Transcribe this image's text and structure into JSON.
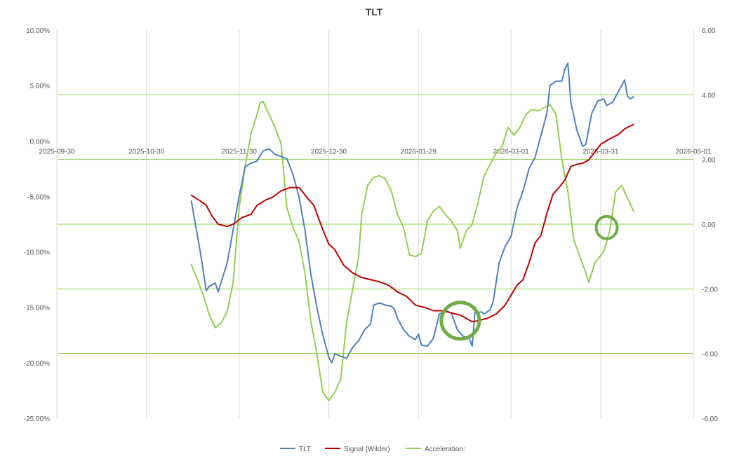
{
  "chart_data": {
    "type": "line",
    "title": "TLT",
    "x_tick_labels": [
      "2025-09-30",
      "2025-10-30",
      "2025-11-30",
      "2025-12-30",
      "2026-01-29",
      "2026-03-01",
      "2026-03-31",
      "2026-05-01"
    ],
    "x_range": [
      "2025-09-30",
      "2026-05-01"
    ],
    "y_left": {
      "tick_labels": [
        "10.00%",
        "5.00%",
        "0.00%",
        "-5.00%",
        "-10.00%",
        "-15.00%",
        "-20.00%",
        "-25.00%"
      ],
      "range": [
        -25,
        10
      ],
      "unit": "%"
    },
    "y_right": {
      "tick_labels": [
        "6.00",
        "4.00",
        "2.00",
        "0.00",
        "-2.00",
        "-4.00",
        "-6.00"
      ],
      "range": [
        -6,
        6
      ]
    },
    "gridlines": {
      "vertical": true,
      "horizontal_right_axis": true
    },
    "legend_position": "bottom",
    "series": [
      {
        "name": "TLT",
        "axis": "left",
        "color": "#4F81BD",
        "points": [
          [
            "2025-11-14",
            -5.4
          ],
          [
            "2025-11-17",
            -10.0
          ],
          [
            "2025-11-19",
            -13.5
          ],
          [
            "2025-11-20",
            -13.1
          ],
          [
            "2025-11-22",
            -12.8
          ],
          [
            "2025-11-23",
            -13.6
          ],
          [
            "2025-11-24",
            -12.7
          ],
          [
            "2025-11-26",
            -11.0
          ],
          [
            "2025-11-28",
            -8.0
          ],
          [
            "2025-11-30",
            -5.0
          ],
          [
            "2025-12-02",
            -2.3
          ],
          [
            "2025-12-04",
            -2.0
          ],
          [
            "2025-12-06",
            -1.8
          ],
          [
            "2025-12-08",
            -0.9
          ],
          [
            "2025-12-10",
            -0.7
          ],
          [
            "2025-12-12",
            -1.2
          ],
          [
            "2025-12-14",
            -1.4
          ],
          [
            "2025-12-16",
            -1.6
          ],
          [
            "2025-12-18",
            -3.0
          ],
          [
            "2025-12-20",
            -5.0
          ],
          [
            "2025-12-22",
            -8.0
          ],
          [
            "2025-12-24",
            -12.0
          ],
          [
            "2025-12-26",
            -15.0
          ],
          [
            "2025-12-28",
            -17.5
          ],
          [
            "2025-12-30",
            -19.5
          ],
          [
            "2025-12-31",
            -20.0
          ],
          [
            "2026-01-01",
            -19.2
          ],
          [
            "2026-01-03",
            -19.4
          ],
          [
            "2026-01-05",
            -19.6
          ],
          [
            "2026-01-07",
            -18.6
          ],
          [
            "2026-01-09",
            -18.0
          ],
          [
            "2026-01-11",
            -17.0
          ],
          [
            "2026-01-13",
            -16.5
          ],
          [
            "2026-01-14",
            -14.8
          ],
          [
            "2026-01-16",
            -14.6
          ],
          [
            "2026-01-18",
            -14.8
          ],
          [
            "2026-01-20",
            -14.9
          ],
          [
            "2026-01-21",
            -15.2
          ],
          [
            "2026-01-22",
            -16.0
          ],
          [
            "2026-01-24",
            -17.0
          ],
          [
            "2026-01-26",
            -17.6
          ],
          [
            "2026-01-28",
            -17.9
          ],
          [
            "2026-01-29",
            -17.4
          ],
          [
            "2026-01-30",
            -18.4
          ],
          [
            "2026-02-01",
            -18.5
          ],
          [
            "2026-02-03",
            -17.8
          ],
          [
            "2026-02-05",
            -15.6
          ],
          [
            "2026-02-07",
            -15.3
          ],
          [
            "2026-02-09",
            -15.5
          ],
          [
            "2026-02-11",
            -17.0
          ],
          [
            "2026-02-13",
            -17.6
          ],
          [
            "2026-02-15",
            -17.8
          ],
          [
            "2026-02-16",
            -18.5
          ],
          [
            "2026-02-17",
            -15.0
          ],
          [
            "2026-02-18",
            -15.5
          ],
          [
            "2026-02-19",
            -15.4
          ],
          [
            "2026-02-20",
            -15.6
          ],
          [
            "2026-02-22",
            -15.2
          ],
          [
            "2026-02-23",
            -14.5
          ],
          [
            "2026-02-25",
            -11.0
          ],
          [
            "2026-02-27",
            -9.5
          ],
          [
            "2026-03-01",
            -8.6
          ],
          [
            "2026-03-03",
            -6.0
          ],
          [
            "2026-03-05",
            -4.5
          ],
          [
            "2026-03-07",
            -2.5
          ],
          [
            "2026-03-09",
            -1.5
          ],
          [
            "2026-03-11",
            0.5
          ],
          [
            "2026-03-13",
            2.5
          ],
          [
            "2026-03-14",
            5.0
          ],
          [
            "2026-03-16",
            5.4
          ],
          [
            "2026-03-18",
            5.4
          ],
          [
            "2026-03-19",
            6.5
          ],
          [
            "2026-03-20",
            7.0
          ],
          [
            "2026-03-21",
            3.5
          ],
          [
            "2026-03-23",
            1.0
          ],
          [
            "2026-03-25",
            -0.5
          ],
          [
            "2026-03-26",
            -0.3
          ],
          [
            "2026-03-28",
            2.5
          ],
          [
            "2026-03-30",
            3.6
          ],
          [
            "2026-04-01",
            3.8
          ],
          [
            "2026-04-02",
            3.2
          ],
          [
            "2026-04-04",
            3.5
          ],
          [
            "2026-04-06",
            4.5
          ],
          [
            "2026-04-08",
            5.5
          ],
          [
            "2026-04-09",
            4.0
          ],
          [
            "2026-04-10",
            3.8
          ],
          [
            "2026-04-11",
            4.0
          ]
        ]
      },
      {
        "name": "Signal (Wilder)",
        "axis": "left",
        "color": "#C00000",
        "points": [
          [
            "2025-11-14",
            -4.9
          ],
          [
            "2025-11-17",
            -5.4
          ],
          [
            "2025-11-19",
            -5.8
          ],
          [
            "2025-11-21",
            -6.8
          ],
          [
            "2025-11-23",
            -7.5
          ],
          [
            "2025-11-26",
            -7.7
          ],
          [
            "2025-11-28",
            -7.5
          ],
          [
            "2025-12-01",
            -6.9
          ],
          [
            "2025-12-04",
            -6.6
          ],
          [
            "2025-12-06",
            -5.8
          ],
          [
            "2025-12-09",
            -5.3
          ],
          [
            "2025-12-11",
            -5.1
          ],
          [
            "2025-12-14",
            -4.5
          ],
          [
            "2025-12-17",
            -4.2
          ],
          [
            "2025-12-19",
            -4.2
          ],
          [
            "2025-12-20",
            -4.2
          ],
          [
            "2025-12-21",
            -4.5
          ],
          [
            "2025-12-23",
            -5.2
          ],
          [
            "2025-12-25",
            -5.8
          ],
          [
            "2025-12-28",
            -8.0
          ],
          [
            "2025-12-30",
            -9.3
          ],
          [
            "2026-01-01",
            -9.8
          ],
          [
            "2026-01-04",
            -11.2
          ],
          [
            "2026-01-07",
            -11.9
          ],
          [
            "2026-01-10",
            -12.3
          ],
          [
            "2026-01-13",
            -12.5
          ],
          [
            "2026-01-16",
            -12.7
          ],
          [
            "2026-01-19",
            -13.0
          ],
          [
            "2026-01-22",
            -13.6
          ],
          [
            "2026-01-25",
            -14.0
          ],
          [
            "2026-01-28",
            -14.8
          ],
          [
            "2026-01-31",
            -15.0
          ],
          [
            "2026-02-03",
            -15.3
          ],
          [
            "2026-02-06",
            -15.3
          ],
          [
            "2026-02-09",
            -15.5
          ],
          [
            "2026-02-12",
            -15.7
          ],
          [
            "2026-02-14",
            -16.0
          ],
          [
            "2026-02-16",
            -16.3
          ],
          [
            "2026-02-18",
            -16.2
          ],
          [
            "2026-02-21",
            -16.0
          ],
          [
            "2026-02-24",
            -15.6
          ],
          [
            "2026-02-27",
            -14.8
          ],
          [
            "2026-03-01",
            -13.9
          ],
          [
            "2026-03-03",
            -13.0
          ],
          [
            "2026-03-05",
            -12.5
          ],
          [
            "2026-03-07",
            -11.0
          ],
          [
            "2026-03-09",
            -9.2
          ],
          [
            "2026-03-11",
            -8.5
          ],
          [
            "2026-03-13",
            -6.5
          ],
          [
            "2026-03-15",
            -4.8
          ],
          [
            "2026-03-17",
            -4.2
          ],
          [
            "2026-03-19",
            -3.5
          ],
          [
            "2026-03-21",
            -2.3
          ],
          [
            "2026-03-23",
            -2.1
          ],
          [
            "2026-03-25",
            -2.0
          ],
          [
            "2026-03-27",
            -1.7
          ],
          [
            "2026-03-29",
            -1.0
          ],
          [
            "2026-03-31",
            -0.3
          ],
          [
            "2026-04-03",
            0.2
          ],
          [
            "2026-04-06",
            0.6
          ],
          [
            "2026-04-08",
            1.1
          ],
          [
            "2026-04-11",
            1.5
          ]
        ]
      },
      {
        "name": "Acceleration:",
        "axis": "right",
        "color": "#92D050",
        "points": [
          [
            "2025-11-14",
            -1.25
          ],
          [
            "2025-11-16",
            -1.7
          ],
          [
            "2025-11-18",
            -2.2
          ],
          [
            "2025-11-20",
            -2.8
          ],
          [
            "2025-11-22",
            -3.2
          ],
          [
            "2025-11-24",
            -3.05
          ],
          [
            "2025-11-26",
            -2.7
          ],
          [
            "2025-11-28",
            -1.8
          ],
          [
            "2025-11-30",
            0.5
          ],
          [
            "2025-12-02",
            1.8
          ],
          [
            "2025-12-04",
            2.8
          ],
          [
            "2025-12-06",
            3.4
          ],
          [
            "2025-12-07",
            3.75
          ],
          [
            "2025-12-08",
            3.8
          ],
          [
            "2025-12-10",
            3.4
          ],
          [
            "2025-12-12",
            3.0
          ],
          [
            "2025-12-14",
            2.5
          ],
          [
            "2025-12-16",
            0.5
          ],
          [
            "2025-12-18",
            -0.1
          ],
          [
            "2025-12-20",
            -0.5
          ],
          [
            "2025-12-22",
            -1.5
          ],
          [
            "2025-12-24",
            -3.0
          ],
          [
            "2025-12-26",
            -4.0
          ],
          [
            "2025-12-28",
            -5.2
          ],
          [
            "2025-12-30",
            -5.45
          ],
          [
            "2026-01-01",
            -5.2
          ],
          [
            "2026-01-03",
            -4.8
          ],
          [
            "2026-01-05",
            -3.0
          ],
          [
            "2026-01-07",
            -2.0
          ],
          [
            "2026-01-09",
            -1.0
          ],
          [
            "2026-01-10",
            0.3
          ],
          [
            "2026-01-12",
            1.2
          ],
          [
            "2026-01-14",
            1.45
          ],
          [
            "2026-01-16",
            1.5
          ],
          [
            "2026-01-18",
            1.4
          ],
          [
            "2026-01-20",
            1.0
          ],
          [
            "2026-01-22",
            0.3
          ],
          [
            "2026-01-24",
            -0.1
          ],
          [
            "2026-01-26",
            -0.95
          ],
          [
            "2026-01-28",
            -1.0
          ],
          [
            "2026-01-30",
            -0.9
          ],
          [
            "2026-02-01",
            0.1
          ],
          [
            "2026-02-03",
            0.4
          ],
          [
            "2026-02-05",
            0.55
          ],
          [
            "2026-02-07",
            0.3
          ],
          [
            "2026-02-09",
            0.1
          ],
          [
            "2026-02-11",
            -0.2
          ],
          [
            "2026-02-12",
            -0.75
          ],
          [
            "2026-02-14",
            -0.2
          ],
          [
            "2026-02-16",
            0.0
          ],
          [
            "2026-02-18",
            0.7
          ],
          [
            "2026-02-20",
            1.5
          ],
          [
            "2026-02-22",
            1.85
          ],
          [
            "2026-02-24",
            2.2
          ],
          [
            "2026-02-26",
            2.4
          ],
          [
            "2026-02-28",
            3.0
          ],
          [
            "2026-03-02",
            2.75
          ],
          [
            "2026-03-04",
            3.0
          ],
          [
            "2026-03-06",
            3.4
          ],
          [
            "2026-03-08",
            3.55
          ],
          [
            "2026-03-10",
            3.5
          ],
          [
            "2026-03-12",
            3.6
          ],
          [
            "2026-03-14",
            3.7
          ],
          [
            "2026-03-16",
            3.4
          ],
          [
            "2026-03-18",
            2.0
          ],
          [
            "2026-03-20",
            1.0
          ],
          [
            "2026-03-22",
            -0.5
          ],
          [
            "2026-03-24",
            -1.0
          ],
          [
            "2026-03-26",
            -1.5
          ],
          [
            "2026-03-27",
            -1.8
          ],
          [
            "2026-03-29",
            -1.2
          ],
          [
            "2026-04-01",
            -0.85
          ],
          [
            "2026-04-03",
            -0.2
          ],
          [
            "2026-04-05",
            1.0
          ],
          [
            "2026-04-07",
            1.2
          ],
          [
            "2026-04-09",
            0.8
          ],
          [
            "2026-04-11",
            0.4
          ]
        ]
      }
    ],
    "annotations": [
      {
        "shape": "circle",
        "color": "#70AD47",
        "x": "2026-02-12",
        "y": -16.2,
        "axis": "left",
        "size": "large"
      },
      {
        "shape": "circle",
        "color": "#70AD47",
        "x": "2026-04-02",
        "y": -7.8,
        "axis": "left",
        "size": "small"
      }
    ]
  }
}
